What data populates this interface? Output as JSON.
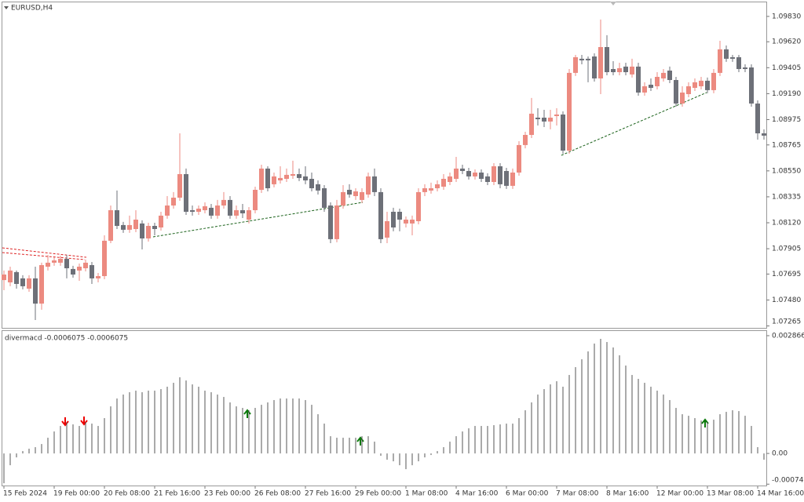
{
  "chart_data": [
    {
      "type": "candlestick",
      "title": "EURUSD,H4",
      "up_color": "#ec8a80",
      "down_color": "#6d7078",
      "ylim": [
        1.07249,
        1.09966
      ],
      "yticks": [
        {
          "value": 1.0983,
          "label": "1.09830"
        },
        {
          "value": 1.0962,
          "label": "1.09620"
        },
        1.09405,
        {
          "value": 1.0919,
          "label": "1.09190"
        },
        1.08975,
        1.08765,
        {
          "value": 1.0855,
          "label": "1.08550"
        },
        1.08335,
        {
          "value": 1.0812,
          "label": "1.08120"
        },
        1.07905,
        1.07695,
        {
          "value": 1.0748,
          "label": "1.07480"
        },
        1.07265
      ],
      "categories": [
        "15 Feb 2024",
        null,
        null,
        null,
        null,
        null,
        null,
        null,
        "19 Feb 00:00",
        null,
        null,
        null,
        null,
        null,
        null,
        null,
        "20 Feb 08:00",
        null,
        null,
        null,
        null,
        null,
        null,
        null,
        "21 Feb 16:00",
        null,
        null,
        null,
        null,
        null,
        null,
        null,
        "23 Feb 00:00",
        null,
        null,
        null,
        null,
        null,
        null,
        null,
        "26 Feb 08:00",
        null,
        null,
        null,
        null,
        null,
        null,
        null,
        "27 Feb 16:00",
        null,
        null,
        null,
        null,
        null,
        null,
        null,
        "29 Feb 00:00",
        null,
        null,
        null,
        null,
        null,
        null,
        null,
        "1 Mar 08:00",
        null,
        null,
        null,
        null,
        null,
        null,
        null,
        "4 Mar 16:00",
        null,
        null,
        null,
        null,
        null,
        null,
        null,
        "6 Mar 00:00",
        null,
        null,
        null,
        null,
        null,
        null,
        null,
        "7 Mar 08:00",
        null,
        null,
        null,
        null,
        null,
        null,
        null,
        "8 Mar 16:00",
        null,
        null,
        null,
        null,
        null,
        null,
        null,
        "12 Mar 00:00",
        null,
        null,
        null,
        null,
        null,
        null,
        null,
        "13 Mar 08:00",
        null,
        null,
        null,
        null,
        null,
        null,
        null,
        "14 Mar 16:00",
        null
      ],
      "ohlc": [
        [
          1.07645,
          1.07724,
          1.07561,
          1.07691
        ],
        [
          1.07626,
          1.07756,
          1.07594,
          1.07724
        ],
        [
          1.07711,
          1.07724,
          1.07574,
          1.07613
        ],
        [
          1.07659,
          1.07685,
          1.07568,
          1.07594
        ],
        [
          1.07574,
          1.07685,
          1.07548,
          1.07659
        ],
        [
          1.07659,
          1.07756,
          1.07314,
          1.0745
        ],
        [
          1.0745,
          1.07789,
          1.07399,
          1.07769
        ],
        [
          1.07756,
          1.07853,
          1.07724,
          1.07789
        ],
        [
          1.07789,
          1.07834,
          1.07763,
          1.07808
        ],
        [
          1.07789,
          1.07847,
          1.07763,
          1.07821
        ],
        [
          1.07821,
          1.07853,
          1.07659,
          1.07743
        ],
        [
          1.07737,
          1.07763,
          1.07665,
          1.07691
        ],
        [
          1.07724,
          1.07782,
          1.07639,
          1.07756
        ],
        [
          1.07743,
          1.07815,
          1.07717,
          1.07789
        ],
        [
          1.07769,
          1.07795,
          1.07613,
          1.07659
        ],
        [
          1.07659,
          1.07704,
          1.07626,
          1.07678
        ],
        [
          1.07678,
          1.08016,
          1.07652,
          1.07971
        ],
        [
          1.07971,
          1.08263,
          1.07951,
          1.08224
        ],
        [
          1.08224,
          1.08387,
          1.08068,
          1.08094
        ],
        [
          1.08101,
          1.08127,
          1.08036,
          1.08062
        ],
        [
          1.08062,
          1.08179,
          1.08036,
          1.08101
        ],
        [
          1.08068,
          1.08224,
          1.08042,
          1.08146
        ],
        [
          1.08114,
          1.0814,
          1.07899,
          1.0799
        ],
        [
          1.0799,
          1.0812,
          1.07964,
          1.08094
        ],
        [
          1.08094,
          1.0812,
          1.08016,
          1.08068
        ],
        [
          1.08081,
          1.08211,
          1.08055,
          1.08179
        ],
        [
          1.08179,
          1.08341,
          1.08153,
          1.08263
        ],
        [
          1.08263,
          1.08374,
          1.08237,
          1.08328
        ],
        [
          1.08328,
          1.08861,
          1.08302,
          1.08523
        ],
        [
          1.08523,
          1.08569,
          1.08185,
          1.08211
        ],
        [
          1.08224,
          1.08263,
          1.08179,
          1.08211
        ],
        [
          1.08211,
          1.08263,
          1.08185,
          1.08237
        ],
        [
          1.08224,
          1.08289,
          1.08198,
          1.08257
        ],
        [
          1.08244,
          1.08276,
          1.08153,
          1.08179
        ],
        [
          1.08179,
          1.08309,
          1.08153,
          1.08263
        ],
        [
          1.08263,
          1.08374,
          1.08237,
          1.08309
        ],
        [
          1.08309,
          1.08341,
          1.08153,
          1.08179
        ],
        [
          1.08179,
          1.08263,
          1.08153,
          1.08224
        ],
        [
          1.08224,
          1.08276,
          1.08159,
          1.08198
        ],
        [
          1.08146,
          1.0825,
          1.08114,
          1.08224
        ],
        [
          1.08224,
          1.08419,
          1.08198,
          1.08393
        ],
        [
          1.08393,
          1.08601,
          1.08367,
          1.08569
        ],
        [
          1.08569,
          1.08588,
          1.0838,
          1.08406
        ],
        [
          1.08439,
          1.08536,
          1.08413,
          1.08504
        ],
        [
          1.08471,
          1.08588,
          1.08445,
          1.08491
        ],
        [
          1.08484,
          1.08569,
          1.08458,
          1.08517
        ],
        [
          1.0851,
          1.08634,
          1.08484,
          1.08523
        ],
        [
          1.08523,
          1.08569,
          1.08465,
          1.08491
        ],
        [
          1.08504,
          1.08588,
          1.08439,
          1.08471
        ],
        [
          1.08484,
          1.08536,
          1.0838,
          1.08406
        ],
        [
          1.08439,
          1.08471,
          1.08354,
          1.08387
        ],
        [
          1.08406,
          1.08432,
          1.08211,
          1.08244
        ],
        [
          1.08263,
          1.08289,
          1.07951,
          1.07984
        ],
        [
          1.07984,
          1.08309,
          1.07958,
          1.08263
        ],
        [
          1.08263,
          1.08432,
          1.08237,
          1.08374
        ],
        [
          1.08393,
          1.08439,
          1.08328,
          1.08354
        ],
        [
          1.08341,
          1.08406,
          1.08309,
          1.0838
        ],
        [
          1.08309,
          1.08406,
          1.08283,
          1.08374
        ],
        [
          1.08354,
          1.08536,
          1.08328,
          1.08504
        ],
        [
          1.08504,
          1.08569,
          1.08341,
          1.08374
        ],
        [
          1.08374,
          1.08406,
          1.07951,
          1.07984
        ],
        [
          1.07997,
          1.08211,
          1.07951,
          1.08133
        ],
        [
          1.08211,
          1.08244,
          1.08049,
          1.08081
        ],
        [
          1.08211,
          1.08237,
          1.08049,
          1.08146
        ],
        [
          1.08114,
          1.08172,
          1.08081,
          1.08146
        ],
        [
          1.08114,
          1.08179,
          1.08016,
          1.08146
        ],
        [
          1.08133,
          1.08406,
          1.08107,
          1.08374
        ],
        [
          1.08374,
          1.08439,
          1.08341,
          1.08406
        ],
        [
          1.08387,
          1.08452,
          1.08361,
          1.08406
        ],
        [
          1.08406,
          1.08471,
          1.0838,
          1.08439
        ],
        [
          1.08419,
          1.08523,
          1.08393,
          1.08484
        ],
        [
          1.08458,
          1.08536,
          1.08432,
          1.08504
        ],
        [
          1.08484,
          1.08666,
          1.08458,
          1.08569
        ],
        [
          1.08569,
          1.08601,
          1.08523,
          1.08549
        ],
        [
          1.08549,
          1.08575,
          1.08478,
          1.08504
        ],
        [
          1.08504,
          1.08562,
          1.08478,
          1.08536
        ],
        [
          1.08536,
          1.08562,
          1.08458,
          1.08484
        ],
        [
          1.08504,
          1.0853,
          1.08432,
          1.08458
        ],
        [
          1.08458,
          1.08614,
          1.08432,
          1.08588
        ],
        [
          1.08588,
          1.08614,
          1.08406,
          1.08439
        ],
        [
          1.08549,
          1.08575,
          1.084,
          1.08426
        ],
        [
          1.08426,
          1.08569,
          1.084,
          1.08536
        ],
        [
          1.08536,
          1.08796,
          1.0851,
          1.08764
        ],
        [
          1.08764,
          1.08874,
          1.08737,
          1.08848
        ],
        [
          1.08848,
          1.09154,
          1.08822,
          1.09024
        ],
        [
          1.08991,
          1.09069,
          1.08926,
          1.08978
        ],
        [
          1.08991,
          1.09056,
          1.08913,
          1.08959
        ],
        [
          1.08959,
          1.09056,
          1.08894,
          1.08991
        ],
        [
          1.09004,
          1.09069,
          1.08926,
          1.09017
        ],
        [
          1.09017,
          1.09043,
          1.08692,
          1.08718
        ],
        [
          1.08718,
          1.09394,
          1.08692,
          1.09362
        ],
        [
          1.09362,
          1.09511,
          1.09336,
          1.09492
        ],
        [
          1.09479,
          1.09511,
          1.09433,
          1.09466
        ],
        [
          1.09479,
          1.09498,
          1.09284,
          1.09466
        ],
        [
          1.09498,
          1.09524,
          1.0929,
          1.09316
        ],
        [
          1.09316,
          1.09804,
          1.09186,
          1.09576
        ],
        [
          1.09576,
          1.09674,
          1.09342,
          1.09368
        ],
        [
          1.09394,
          1.09459,
          1.09342,
          1.09368
        ],
        [
          1.09368,
          1.09446,
          1.09342,
          1.09401
        ],
        [
          1.09414,
          1.09446,
          1.09342,
          1.09368
        ],
        [
          1.09349,
          1.09479,
          1.09323,
          1.09414
        ],
        [
          1.09414,
          1.09446,
          1.09173,
          1.09199
        ],
        [
          1.09199,
          1.09284,
          1.09173,
          1.09251
        ],
        [
          1.09264,
          1.09316,
          1.09212,
          1.09238
        ],
        [
          1.09251,
          1.09368,
          1.09225,
          1.09329
        ],
        [
          1.09316,
          1.09394,
          1.0929,
          1.09362
        ],
        [
          1.09381,
          1.09414,
          1.09277,
          1.09303
        ],
        [
          1.09303,
          1.09329,
          1.09082,
          1.09108
        ],
        [
          1.09108,
          1.09251,
          1.09082,
          1.09199
        ],
        [
          1.09186,
          1.09284,
          1.0916,
          1.09251
        ],
        [
          1.09238,
          1.09316,
          1.09212,
          1.09284
        ],
        [
          1.09251,
          1.09329,
          1.09225,
          1.09297
        ],
        [
          1.09297,
          1.09323,
          1.09193,
          1.09219
        ],
        [
          1.09219,
          1.09394,
          1.09193,
          1.09362
        ],
        [
          1.09362,
          1.09628,
          1.09336,
          1.09557
        ],
        [
          1.09557,
          1.09589,
          1.09453,
          1.09479
        ],
        [
          1.09492,
          1.09511,
          1.09453,
          1.09479
        ],
        [
          1.09492,
          1.09511,
          1.09368,
          1.09394
        ],
        [
          1.09407,
          1.09433,
          1.09368,
          1.09394
        ],
        [
          1.09407,
          1.09433,
          1.09082,
          1.09108
        ],
        [
          1.09108,
          1.09134,
          1.08809,
          1.08861
        ],
        [
          1.08861,
          1.08894,
          1.08809,
          1.08842
        ]
      ]
    },
    {
      "type": "bar",
      "title": "divermacd -0.0006075 -0.0006075",
      "color": "#555555",
      "ylim": [
        -0.0008,
        0.00298
      ],
      "yticks": [
        0.0028661,
        {
          "value": 0,
          "label": "0.00"
        },
        -0.0007474
      ],
      "values": [
        -0.000726,
        -0.000287,
        -9.6e-05,
        5.7e-05,
        0.000115,
        0.000153,
        0.000229,
        0.000382,
        0.000535,
        0.000669,
        0.000764,
        0.000707,
        0.000669,
        0.000764,
        0.000726,
        0.000669,
        0.00086,
        0.001146,
        0.001337,
        0.001433,
        0.00149,
        0.001528,
        0.00149,
        0.001528,
        0.001528,
        0.001566,
        0.001624,
        0.001719,
        0.001853,
        0.001776,
        0.001681,
        0.001624,
        0.001528,
        0.00149,
        0.001433,
        0.001375,
        0.001242,
        0.001146,
        0.001108,
        0.001051,
        0.001108,
        0.001184,
        0.001242,
        0.001299,
        0.001337,
        0.001337,
        0.001337,
        0.001337,
        0.001299,
        0.001184,
        0.000955,
        0.000726,
        0.00042,
        0.000382,
        0.000382,
        0.000382,
        0.000382,
        0.00042,
        0.00042,
        0.000287,
        -5.7e-05,
        -0.000153,
        -0.000191,
        -0.000287,
        -0.000382,
        -0.000287,
        -0.000191,
        -9.6e-05,
        -3.8e-05,
        5.7e-05,
        0.000153,
        0.000287,
        0.00042,
        0.000535,
        0.000611,
        0.000669,
        0.000669,
        0.000669,
        0.000688,
        0.000707,
        0.000726,
        0.000726,
        0.00086,
        0.001051,
        0.001242,
        0.001433,
        0.001566,
        0.001681,
        0.001757,
        0.001624,
        0.00191,
        0.002101,
        0.002292,
        0.002483,
        0.002674,
        0.002789,
        0.002712,
        0.002579,
        0.002388,
        0.002139,
        0.00191,
        0.001815,
        0.001719,
        0.001624,
        0.001528,
        0.001433,
        0.001299,
        0.001108,
        0.000955,
        0.000917,
        0.00086,
        0.000802,
        0.000764,
        0.000821,
        0.000955,
        0.001012,
        0.001051,
        0.001031,
        0.000917,
        0.000669,
        0.000153,
        -0.000153
      ]
    }
  ]
}
